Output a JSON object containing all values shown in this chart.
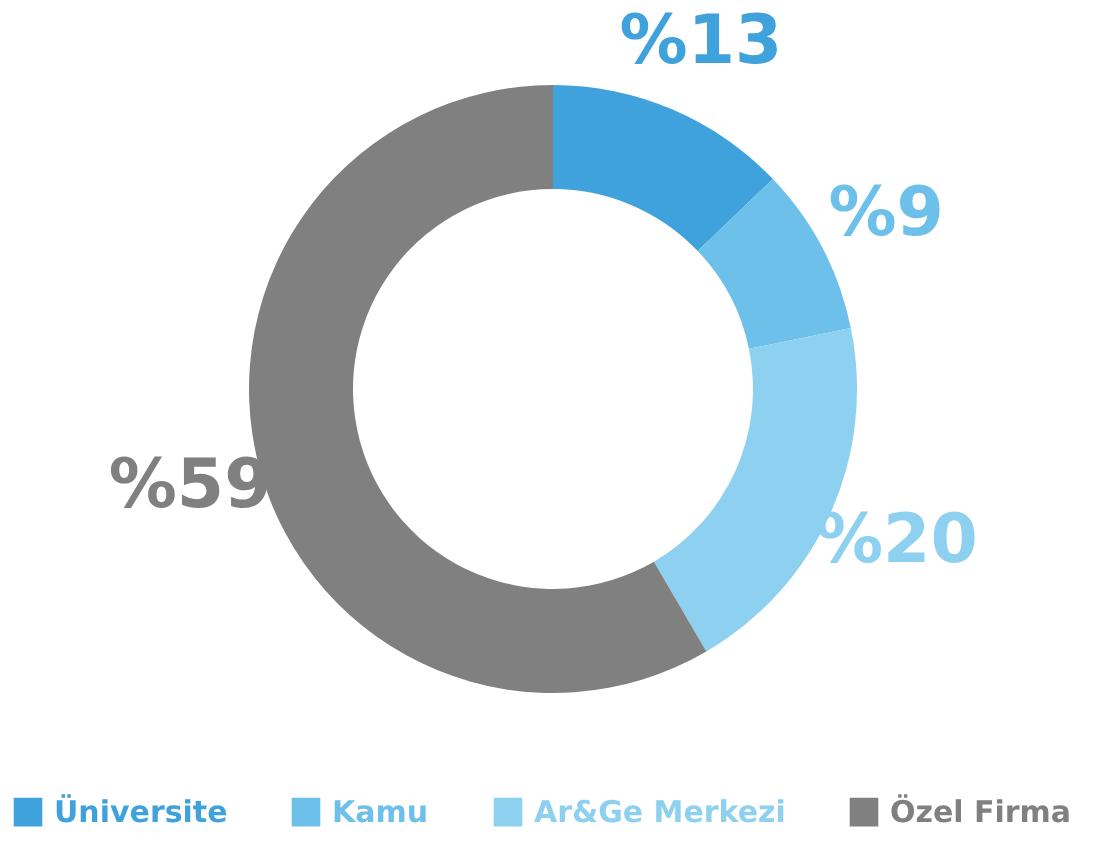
{
  "chart_data": {
    "type": "donut",
    "categories": [
      "Üniversite",
      "Kamu",
      "Ar&Ge Merkezi",
      "Özel Firma"
    ],
    "values": [
      13,
      9,
      20,
      59
    ],
    "colors": [
      "#3fa2dc",
      "#6cc0ea",
      "#8ed0f0",
      "#808080"
    ],
    "value_labels": [
      "%13",
      "%9",
      "%20",
      "%59"
    ],
    "legend": "bottom"
  }
}
